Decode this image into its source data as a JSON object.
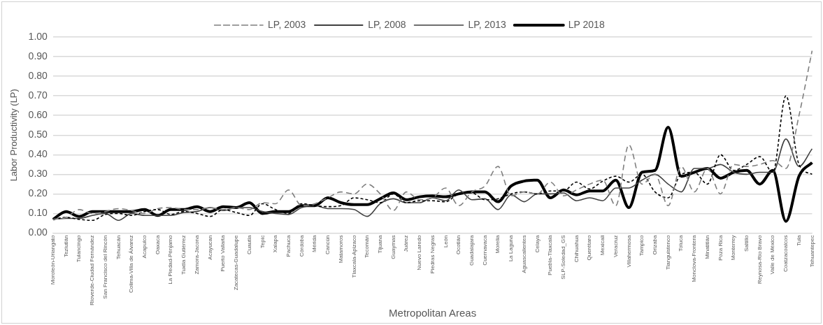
{
  "chart_data": {
    "type": "line",
    "xlabel": "Metropolitan Areas",
    "ylabel": "Labor Productivity (LP)",
    "categories": [
      "Moroleón-Uriangato",
      "Teziutlán",
      "Tulancingo",
      "Rioverde-Ciudad Fernández",
      "San Francisco del Rincón",
      "Tehuacán",
      "Colima-Villa de Álvarez",
      "Acapulco",
      "Oaxaca",
      "La Piedad-Pénjamo",
      "Tuxtla Gutiérrez",
      "Zamora-Jacona",
      "Acayucan",
      "Puerto Vallarta",
      "Zacatecas-Guadalupe",
      "Cuautla",
      "Tepic",
      "Xalapa",
      "Pachuca",
      "Córdoba",
      "Mérida",
      "Cancún",
      "Matamoros",
      "Tlaxcala-Apizaco",
      "Tecomán",
      "Tijuana",
      "Guaymas",
      "Juárez",
      "Nuevo Laredo",
      "Piedras Negras",
      "León",
      "Ocotlán",
      "Guadalajara",
      "Cuernavaca",
      "Morelia",
      "La Laguna",
      "Aguascalientes",
      "Celaya",
      "Puebla-Tlaxcala",
      "SLP-Soledad_GS",
      "Chihuahua",
      "Querétaro",
      "Mexicali",
      "Veracruz",
      "Villahermosa",
      "Tampico",
      "Orizaba",
      "Tianguistenco",
      "Toluca",
      "Monclova-Frontera",
      "Minatitlán",
      "Poza Rica",
      "Monterrey",
      "Saltillo",
      "Reynosa-Río Bravo",
      "Valle de México",
      "Coatzacoalcos",
      "Tula",
      "Tehuantepec"
    ],
    "series": [
      {
        "name": "LP, 2003",
        "color": "#7f7f7f",
        "line_style": "dashed",
        "values": [
          0.07,
          0.08,
          0.12,
          0.1,
          0.11,
          0.125,
          0.115,
          0.1,
          0.125,
          0.13,
          0.12,
          0.12,
          0.13,
          0.12,
          0.13,
          0.12,
          0.155,
          0.15,
          0.22,
          0.14,
          0.15,
          0.18,
          0.21,
          0.2,
          0.25,
          0.2,
          0.115,
          0.21,
          0.17,
          0.18,
          0.23,
          0.14,
          0.21,
          0.24,
          0.34,
          0.19,
          0.21,
          0.2,
          0.26,
          0.19,
          0.22,
          0.25,
          0.27,
          0.14,
          0.45,
          0.25,
          0.3,
          0.14,
          0.34,
          0.21,
          0.33,
          0.2,
          0.35,
          0.34,
          0.35,
          0.37,
          0.33,
          0.6,
          0.93
        ]
      },
      {
        "name": "LP, 2008",
        "color": "#000000",
        "line_style": "dashed",
        "values": [
          0.07,
          0.08,
          0.07,
          0.065,
          0.095,
          0.1,
          0.09,
          0.11,
          0.12,
          0.095,
          0.11,
          0.1,
          0.085,
          0.12,
          0.105,
          0.09,
          0.15,
          0.12,
          0.1,
          0.15,
          0.14,
          0.135,
          0.14,
          0.18,
          0.17,
          0.155,
          0.2,
          0.155,
          0.165,
          0.165,
          0.16,
          0.2,
          0.205,
          0.17,
          0.175,
          0.2,
          0.21,
          0.2,
          0.215,
          0.215,
          0.26,
          0.225,
          0.265,
          0.29,
          0.26,
          0.3,
          0.21,
          0.18,
          0.3,
          0.31,
          0.25,
          0.4,
          0.32,
          0.35,
          0.39,
          0.31,
          0.7,
          0.35,
          0.3
        ]
      },
      {
        "name": "LP, 2013",
        "color": "#404040",
        "line_style": "solid",
        "values": [
          0.07,
          0.075,
          0.075,
          0.09,
          0.1,
          0.065,
          0.1,
          0.09,
          0.09,
          0.09,
          0.105,
          0.11,
          0.13,
          0.115,
          0.13,
          0.13,
          0.11,
          0.1,
          0.095,
          0.13,
          0.14,
          0.125,
          0.125,
          0.12,
          0.085,
          0.15,
          0.175,
          0.155,
          0.155,
          0.18,
          0.165,
          0.22,
          0.17,
          0.175,
          0.12,
          0.195,
          0.16,
          0.2,
          0.2,
          0.205,
          0.165,
          0.18,
          0.165,
          0.23,
          0.23,
          0.27,
          0.3,
          0.25,
          0.21,
          0.33,
          0.33,
          0.35,
          0.31,
          0.3,
          0.31,
          0.31,
          0.48,
          0.34,
          0.43
        ]
      },
      {
        "name": "LP 2018",
        "color": "#000000",
        "line_style": "solid",
        "values": [
          0.07,
          0.11,
          0.085,
          0.11,
          0.11,
          0.11,
          0.11,
          0.12,
          0.09,
          0.12,
          0.12,
          0.135,
          0.11,
          0.135,
          0.13,
          0.155,
          0.1,
          0.11,
          0.11,
          0.14,
          0.14,
          0.18,
          0.155,
          0.145,
          0.145,
          0.175,
          0.205,
          0.17,
          0.185,
          0.19,
          0.185,
          0.2,
          0.21,
          0.21,
          0.16,
          0.24,
          0.265,
          0.27,
          0.18,
          0.22,
          0.195,
          0.215,
          0.215,
          0.27,
          0.13,
          0.31,
          0.32,
          0.54,
          0.29,
          0.31,
          0.33,
          0.28,
          0.31,
          0.32,
          0.25,
          0.32,
          0.06,
          0.29,
          0.36
        ]
      }
    ],
    "ylim": [
      0,
      1
    ],
    "yticks": [
      {
        "value": 0,
        "label": "0.00"
      },
      {
        "value": 0.1,
        "label": "0.10"
      },
      {
        "value": 0.2,
        "label": "0.20"
      },
      {
        "value": 0.3,
        "label": "0.30"
      },
      {
        "value": 0.4,
        "label": "0.40"
      },
      {
        "value": 0.5,
        "label": "0.50"
      },
      {
        "value": 0.6,
        "label": "0.60"
      },
      {
        "value": 0.7,
        "label": "0.70"
      },
      {
        "value": 0.8,
        "label": "0.80"
      },
      {
        "value": 0.9,
        "label": "0.90"
      },
      {
        "value": 1,
        "label": "1.00"
      }
    ],
    "grid": "y",
    "legend": "top",
    "marker": "none"
  }
}
